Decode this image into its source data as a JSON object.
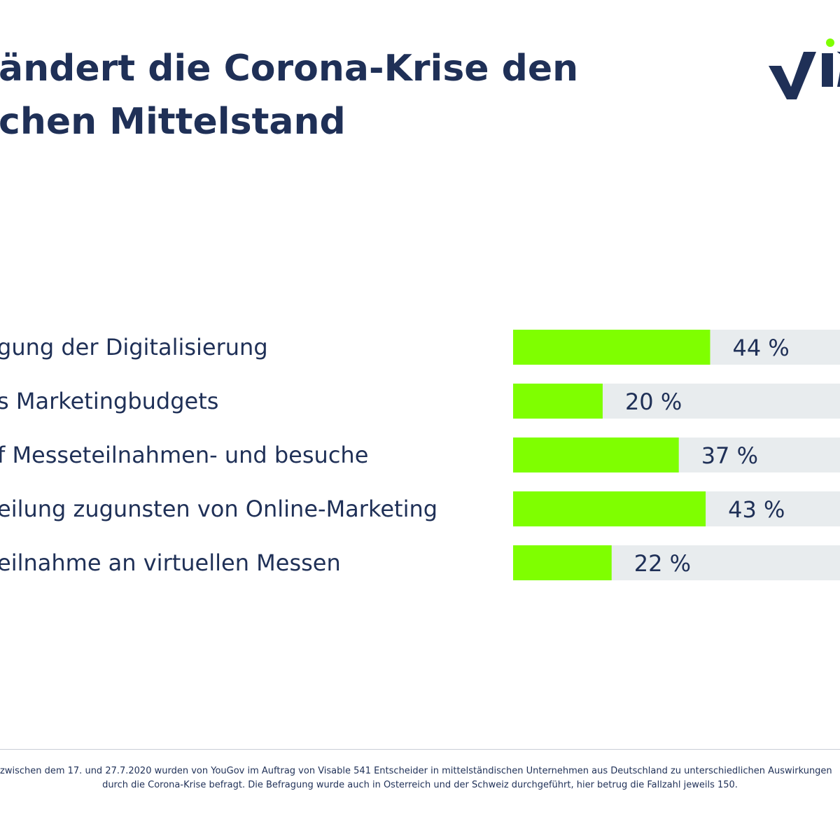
{
  "title": {
    "line1": "ändert die Corona-Krise den",
    "line2": "chen Mittelstand"
  },
  "logo": {
    "text": "VIS",
    "colors": {
      "primary": "#1f3057",
      "accent": "#7fff00"
    }
  },
  "colors": {
    "bar": "#7fff00",
    "track": "#e8ecee",
    "text": "#1f3057"
  },
  "chart_data": {
    "type": "bar",
    "orientation": "horizontal",
    "categories": [
      "gung der Digitalisierung",
      "s Marketingbudgets",
      "f Messeteilnahmen- und besuche",
      "eilung zugunsten von Online-Marketing",
      "eilnahme an virtuellen Messen"
    ],
    "values": [
      44,
      20,
      37,
      43,
      22
    ],
    "value_labels": [
      "44 %",
      "20 %",
      "37 %",
      "43 %",
      "22 %"
    ],
    "unit": "%",
    "xlim": [
      0,
      73
    ],
    "title": "",
    "xlabel": "",
    "ylabel": "",
    "grid": false,
    "legend": "none"
  },
  "footnote": {
    "line1": "zwischen dem 17. und 27.7.2020 wurden von YouGov im Auftrag von Visable 541 Entscheider in mittelständischen Unternehmen aus Deutschland zu unterschiedlichen Auswirkungen",
    "line2": "durch die Corona-Krise befragt. Die Befragung wurde auch in Österreich und der Schweiz durchgeführt, hier betrug die Fallzahl jeweils 150."
  }
}
